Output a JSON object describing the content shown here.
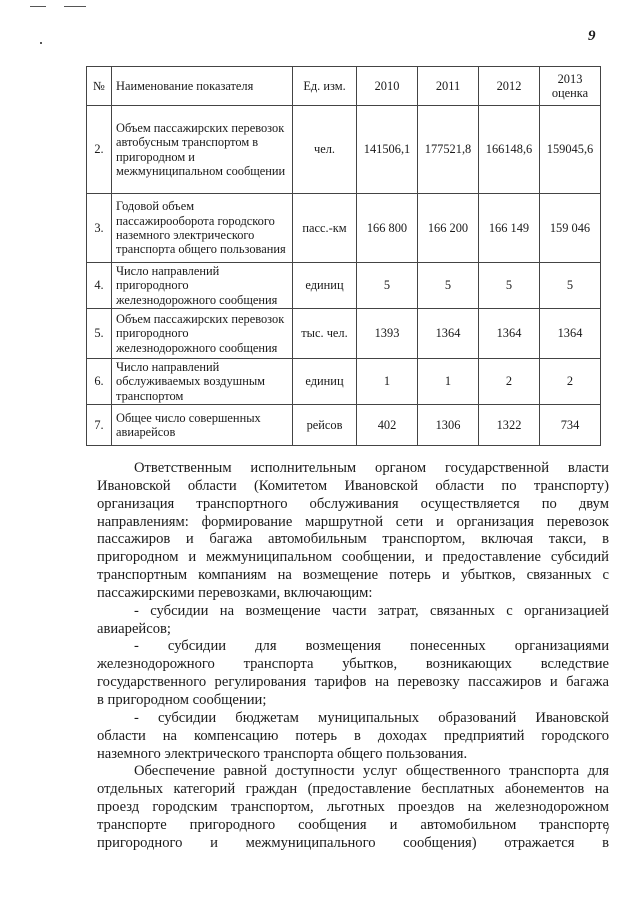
{
  "page_number": "9",
  "table": {
    "headers": [
      "№",
      "Наименование показателя",
      "Ед. изм.",
      "2010",
      "2011",
      "2012",
      "2013 оценка"
    ],
    "rows": [
      {
        "num": "2.",
        "name": "Объем пассажирских перевозок автобусным транспортом в пригородном и межмуниципальном сообщении",
        "unit": "чел.",
        "v2010": "141506,1",
        "v2011": "177521,8",
        "v2012": "166148,6",
        "v2013": "159045,6"
      },
      {
        "num": "3.",
        "name": "Годовой объем пассажирооборота городского наземного электрического транспорта общего пользования",
        "unit": "пасс.-км",
        "v2010": "166 800",
        "v2011": "166 200",
        "v2012": "166 149",
        "v2013": "159 046"
      },
      {
        "num": "4.",
        "name": "Число направлений пригородного железнодорожного сообщения",
        "unit": "единиц",
        "v2010": "5",
        "v2011": "5",
        "v2012": "5",
        "v2013": "5"
      },
      {
        "num": "5.",
        "name": "Объем пассажирских перевозок пригородного железнодорожного сообщения",
        "unit": "тыс. чел.",
        "v2010": "1393",
        "v2011": "1364",
        "v2012": "1364",
        "v2013": "1364"
      },
      {
        "num": "6.",
        "name": "Число направлений обслуживаемых воздушным транспортом",
        "unit": "единиц",
        "v2010": "1",
        "v2011": "1",
        "v2012": "2",
        "v2013": "2"
      },
      {
        "num": "7.",
        "name": "Общее число совершенных авиарейсов",
        "unit": "рейсов",
        "v2010": "402",
        "v2011": "1306",
        "v2012": "1322",
        "v2013": "734"
      }
    ]
  },
  "body_lines": [
    "Ответственным исполнительным органом государственной власти",
    "Ивановской области (Комитетом Ивановской области по транспорту)",
    "организация транспортного обслуживания осуществляется по двум",
    "направлениям: формирование маршрутной сети и организация перевозок",
    "пассажиров и багажа автомобильным транспортом, включая такси, в",
    "пригородном и межмуниципальном сообщении, и предоставление субсидий",
    "транспортным компаниям на возмещение потерь и убытков, связанных с",
    "пассажирскими перевозками, включающим:",
    "- субсидии на возмещение части затрат, связанных с организацией",
    "авиарейсов;",
    "- субсидии для возмещения понесенных организациями",
    "железнодорожного транспорта убытков, возникающих вследствие",
    "государственного регулирования тарифов на перевозку пассажиров и багажа",
    "в пригородном сообщении;",
    "- субсидии бюджетам муниципальных образований Ивановской",
    "области на компенсацию потерь в доходах предприятий городского",
    "наземного электрического транспорта общего пользования.",
    "Обеспечение равной доступности услуг общественного транспорта для",
    "отдельных категорий граждан (предоставление бесплатных абонементов на",
    "проезд городским транспортом, льготных проездов на железнодорожном",
    "транспорте пригородного сообщения и автомобильном транспорте",
    "пригородного и межмуниципального сообщения) отражается в"
  ]
}
